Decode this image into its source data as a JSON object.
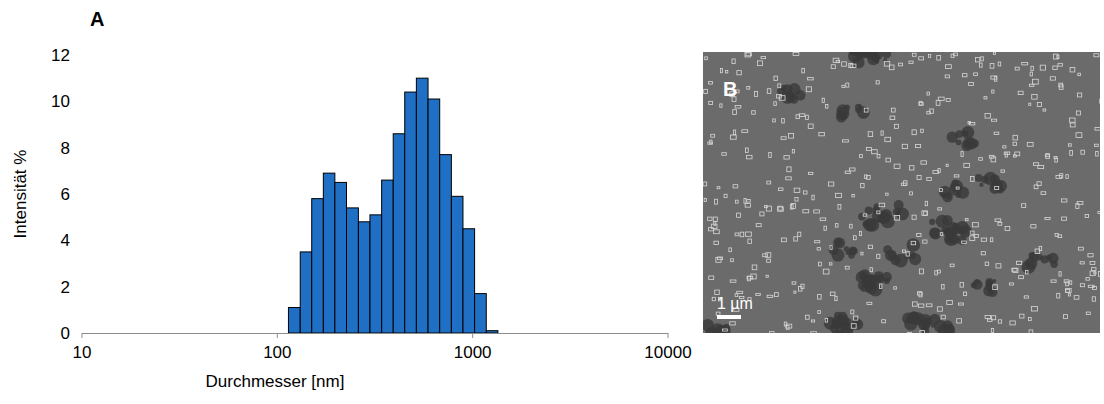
{
  "chart_data": {
    "type": "histogram",
    "panel": "A",
    "x_label": "Durchmesser [nm]",
    "y_label": "Intensität %",
    "bins": [
      114,
      131,
      150,
      172,
      197,
      226,
      260,
      298,
      342,
      392,
      449,
      515,
      591,
      678,
      778,
      892,
      1023,
      1174,
      1346
    ],
    "values": [
      1.1,
      3.5,
      5.8,
      6.9,
      6.5,
      5.4,
      4.8,
      5.1,
      6.6,
      8.6,
      10.4,
      11.0,
      10.1,
      7.7,
      5.9,
      4.5,
      1.7,
      0.1
    ],
    "color": "#1f6fc5",
    "log": "x",
    "grid": false,
    "xlim": [
      10,
      10000
    ],
    "xticks": [
      10,
      100,
      1000,
      10000
    ],
    "ylim": [
      0,
      12
    ],
    "yticks": [
      0,
      2,
      4,
      6,
      8,
      10,
      12
    ]
  },
  "micrograph": {
    "panel": "B",
    "scale_bar": "1 µm"
  }
}
